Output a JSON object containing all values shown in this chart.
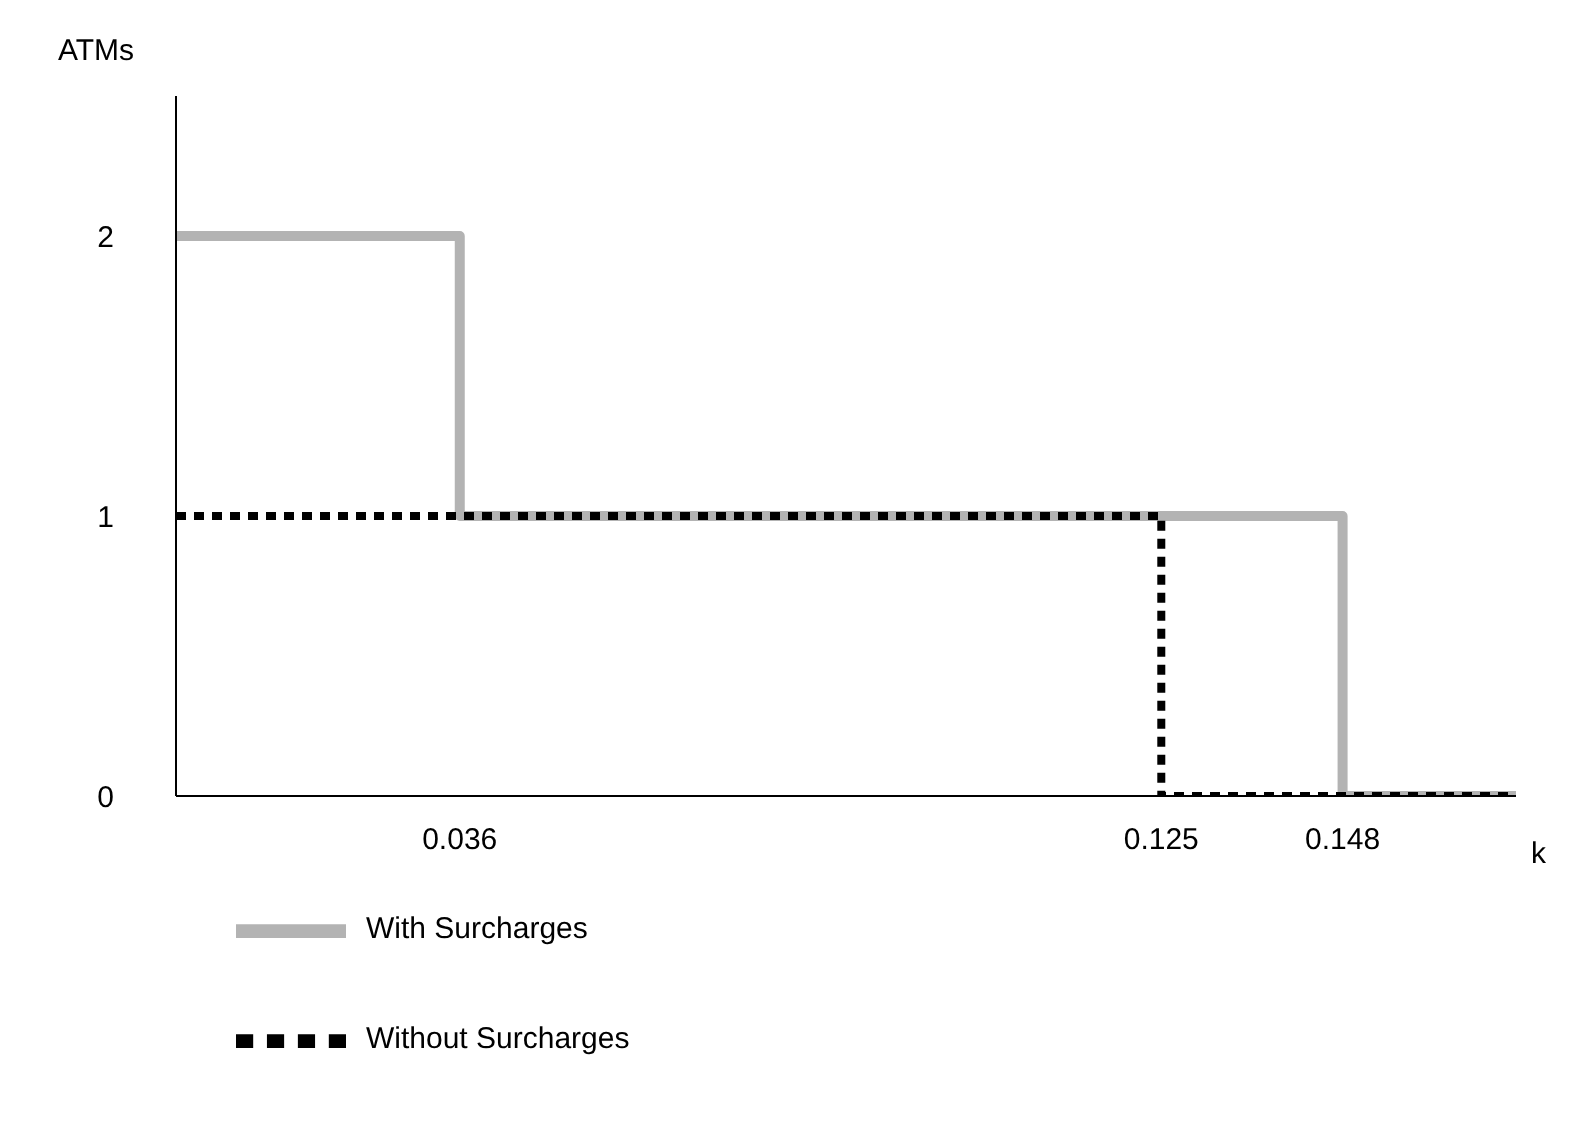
{
  "chart_data": {
    "type": "step",
    "xlabel": "k",
    "ylabel": "ATMs",
    "xlim": [
      0,
      0.17
    ],
    "xticks": [
      0.036,
      0.125,
      0.148
    ],
    "ylim": [
      0,
      2.5
    ],
    "yticks": [
      0,
      1,
      2
    ],
    "grid": false,
    "legend": "bottom left",
    "marker": "none",
    "series": [
      {
        "name": "With Surcharges",
        "color": "#b3b3b3",
        "line_style": "solid",
        "x": [
          0,
          0.036,
          0.148,
          0.17
        ],
        "values": [
          2,
          1,
          0,
          0
        ]
      },
      {
        "name": "Without Surcharges",
        "color": "#000000",
        "line_style": "dotted",
        "x": [
          0,
          0.125,
          0.17
        ],
        "values": [
          1,
          0,
          0
        ]
      }
    ]
  }
}
